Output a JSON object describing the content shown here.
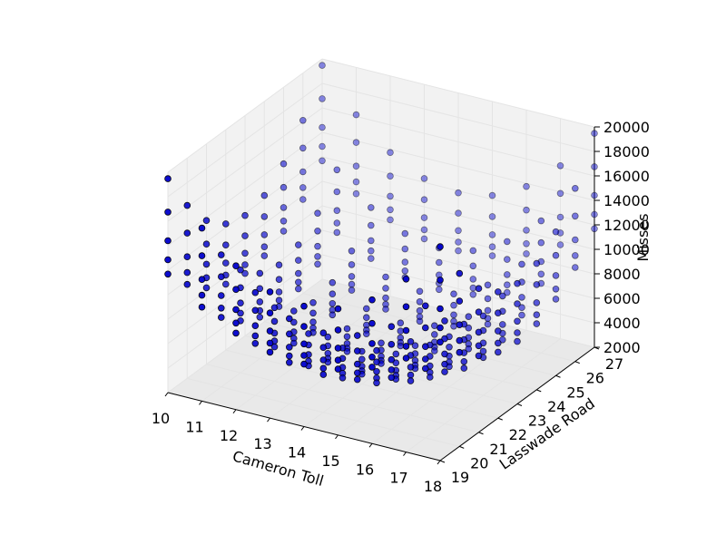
{
  "colors": {
    "pane": "#f2f2f2",
    "pane_dark": "#e9e9e9",
    "grid": "#e4e4e4",
    "marker_fill": "#0000cc",
    "marker_edge": "#000000",
    "axis": "#000000"
  },
  "chart_data": {
    "type": "scatter",
    "projection": "3d",
    "title": "",
    "xlabel": "Cameron Toll",
    "ylabel": "Lasswade Road",
    "zlabel": "Misses",
    "xlim": [
      10,
      18
    ],
    "ylim": [
      19,
      27
    ],
    "zlim": [
      2000,
      20000
    ],
    "x_ticks": [
      "10",
      "11",
      "12",
      "13",
      "14",
      "15",
      "16",
      "17",
      "18"
    ],
    "y_ticks": [
      "19",
      "20",
      "21",
      "22",
      "23",
      "24",
      "25",
      "26",
      "27"
    ],
    "z_ticks": [
      "2000",
      "4000",
      "6000",
      "8000",
      "10000",
      "12000",
      "14000",
      "16000",
      "18000",
      "20000"
    ],
    "grid": true,
    "x_values": [
      10,
      11,
      12,
      13,
      14,
      15,
      16,
      17,
      18
    ],
    "y_values": [
      19,
      20,
      21,
      22,
      23,
      24,
      25,
      26,
      27
    ],
    "z_formula_note": "",
    "points_per_column": 5
  }
}
